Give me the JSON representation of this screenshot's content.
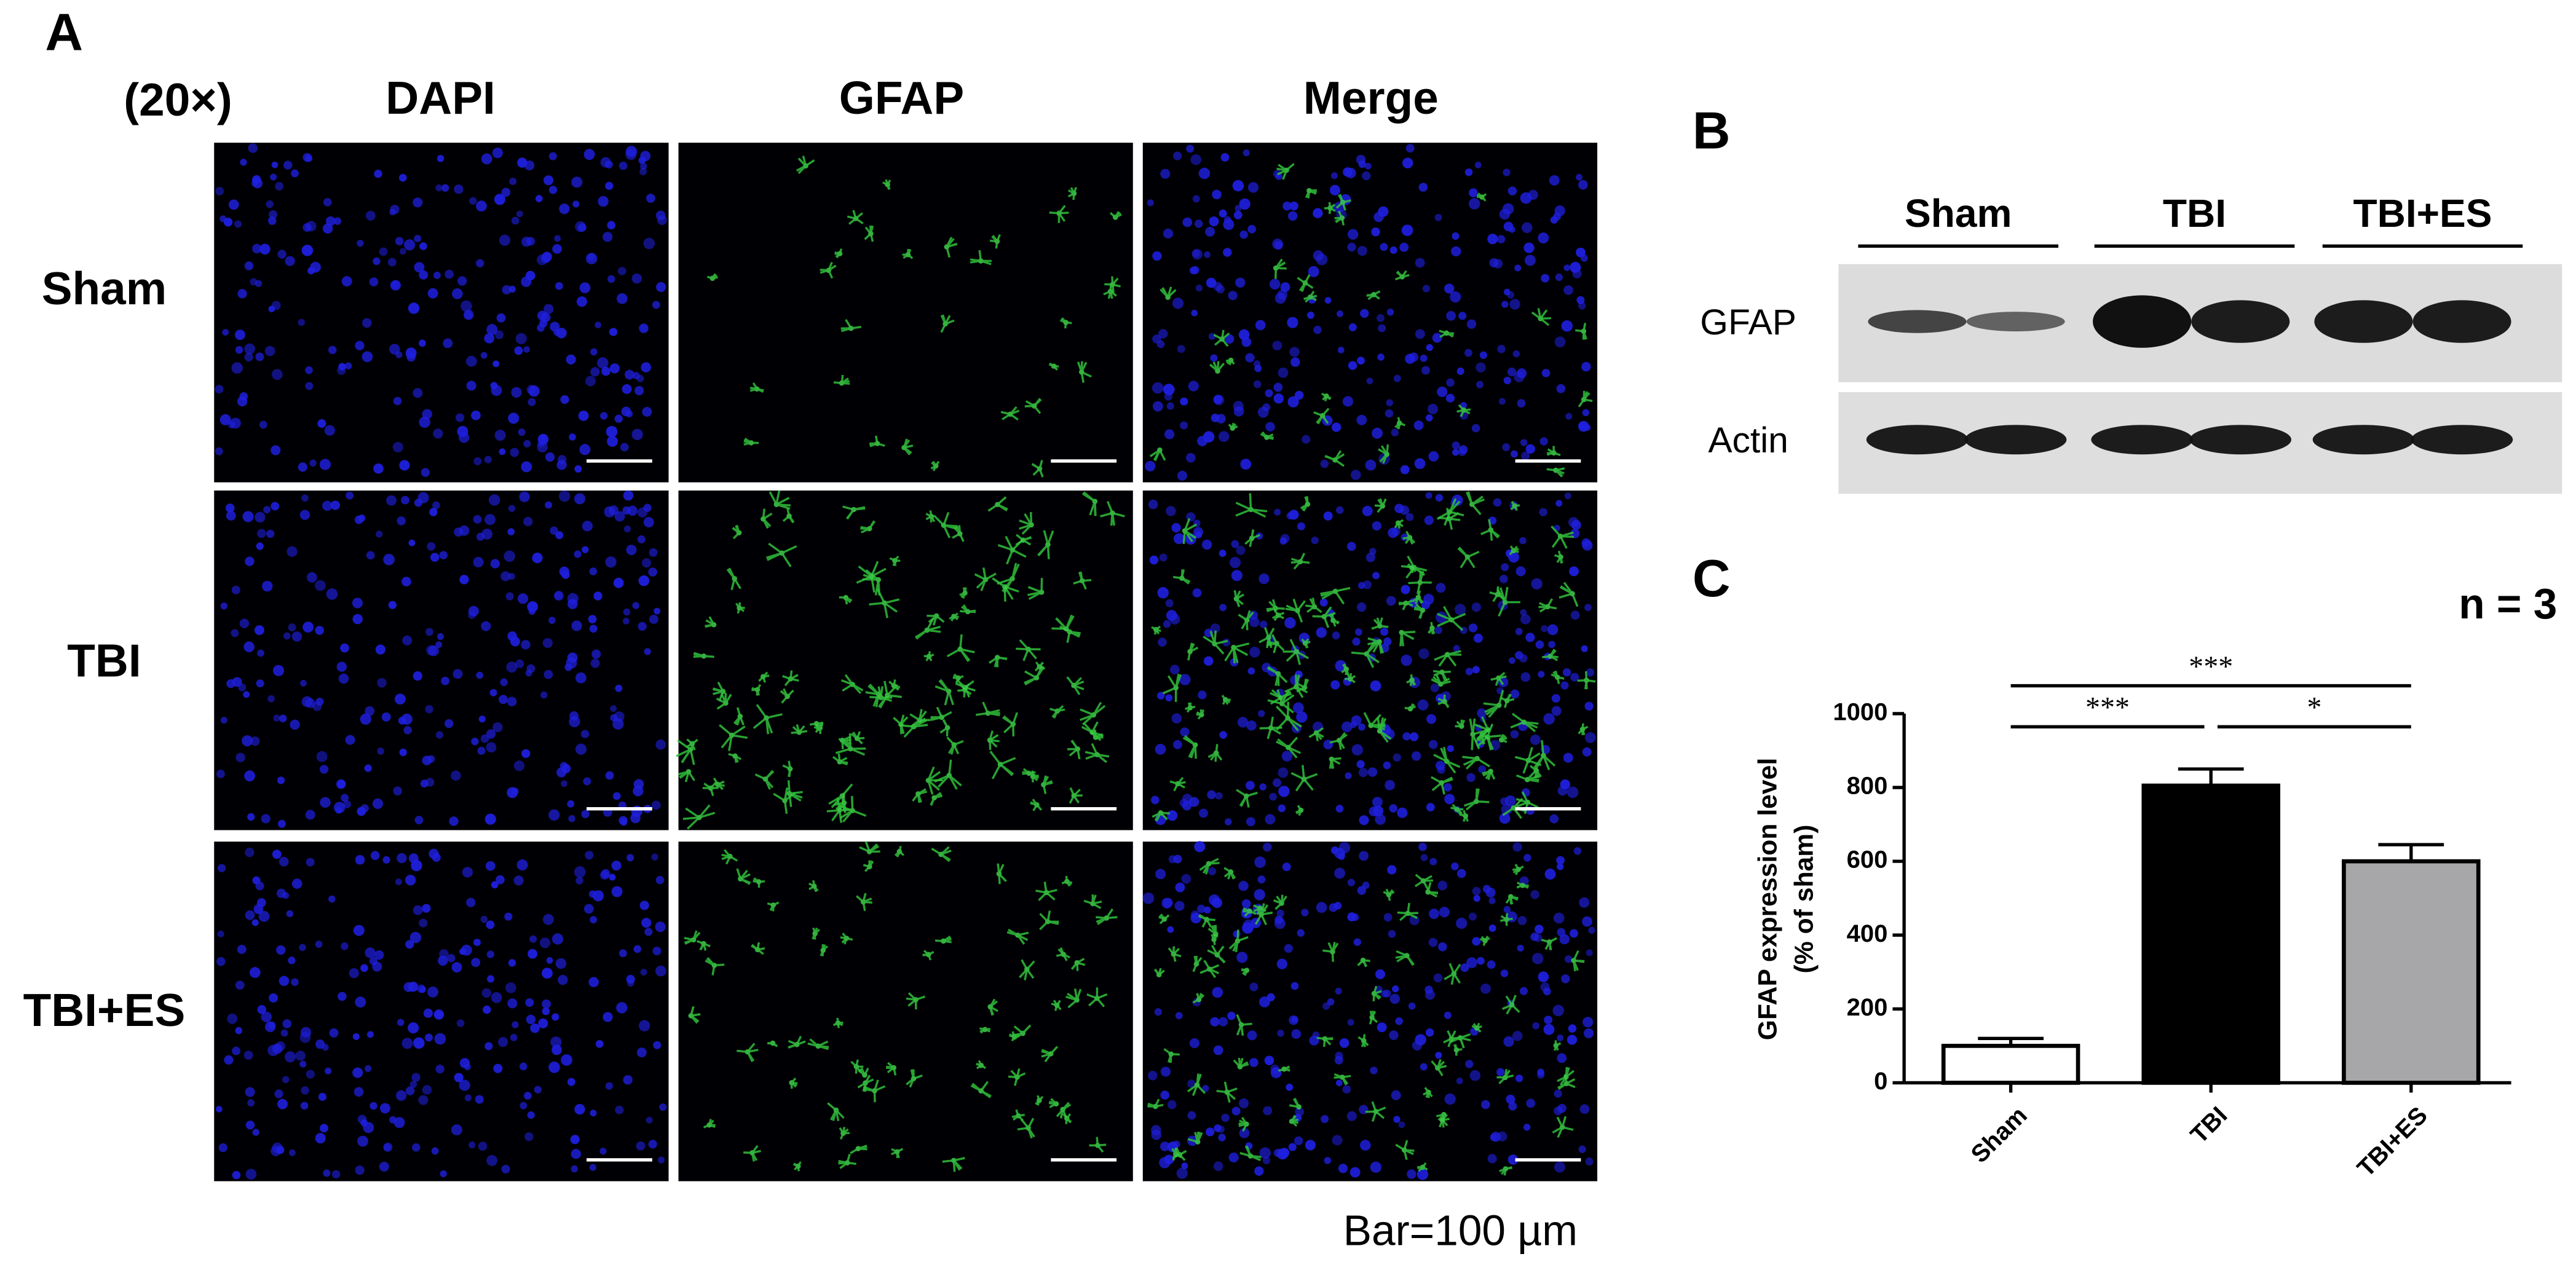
{
  "panel_a": {
    "label": "A",
    "magnification": "(20×)",
    "columns": [
      "DAPI",
      "GFAP",
      "Merge"
    ],
    "rows": [
      "Sham",
      "TBI",
      "TBI+ES"
    ],
    "scale_note": "Bar=100 µm"
  },
  "panel_b": {
    "label": "B",
    "groups": [
      "Sham",
      "TBI",
      "TBI+ES"
    ],
    "bands": [
      "GFAP",
      "Actin"
    ]
  },
  "panel_c": {
    "label": "C",
    "annotation": "n = 3"
  },
  "chart_data": {
    "type": "bar",
    "y_label": [
      "GFAP expression level",
      "(% of sham)"
    ],
    "categories": [
      "Sham",
      "TBI",
      "TBI+ES"
    ],
    "values": [
      100,
      805,
      600
    ],
    "errors": [
      20,
      45,
      45
    ],
    "colors": [
      "#ffffff",
      "#000000",
      "#a7a7aa"
    ],
    "ylim": [
      0,
      1000
    ],
    "yticks": [
      0,
      200,
      400,
      600,
      800,
      1000
    ],
    "significance": [
      {
        "groups": [
          "Sham",
          "TBI"
        ],
        "label": "***"
      },
      {
        "groups": [
          "TBI",
          "TBI+ES"
        ],
        "label": "*"
      },
      {
        "groups": [
          "Sham",
          "TBI+ES"
        ],
        "label": "***"
      }
    ]
  }
}
